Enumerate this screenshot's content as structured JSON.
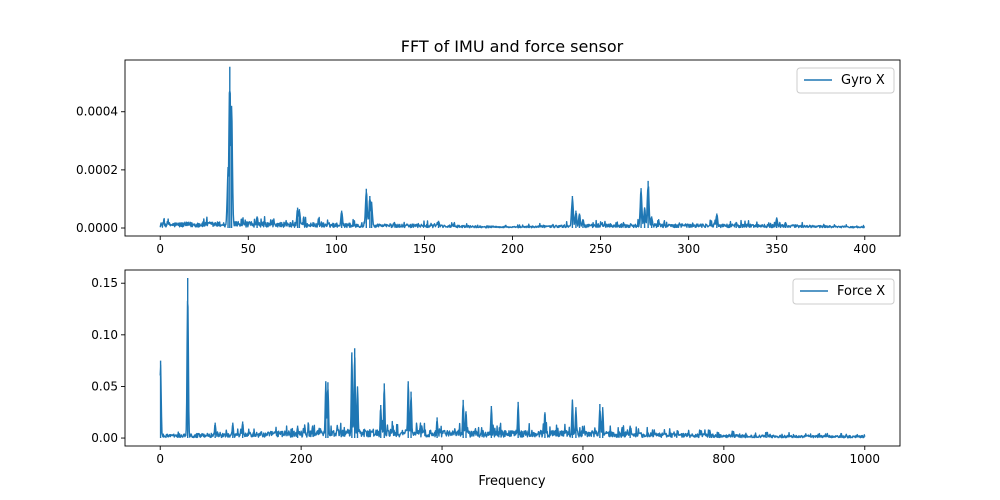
{
  "figure": {
    "title": "FFT of IMU and force sensor"
  },
  "chart_data": [
    {
      "type": "line",
      "title": "FFT of IMU and force sensor",
      "xlabel": "",
      "ylabel": "",
      "xlim": [
        -20,
        420
      ],
      "ylim": [
        -2.75e-05,
        0.000578
      ],
      "x_ticks": [
        0,
        50,
        100,
        150,
        200,
        250,
        300,
        350,
        400
      ],
      "x_tick_labels": [
        "0",
        "50",
        "100",
        "150",
        "200",
        "250",
        "300",
        "350",
        "400"
      ],
      "y_ticks": [
        0,
        0.0002,
        0.0004
      ],
      "y_tick_labels": [
        "0.0000",
        "0.0002",
        "0.0004"
      ],
      "grid": false,
      "legend_position": "top-right",
      "color": "#1f77b4",
      "noise_floor": [
        [
          0,
          1.5e-05
        ],
        [
          40,
          1.8e-05
        ],
        [
          100,
          1.4e-05
        ],
        [
          150,
          1e-05
        ],
        [
          200,
          4e-06
        ],
        [
          250,
          1.2e-05
        ],
        [
          300,
          1.2e-05
        ],
        [
          350,
          1e-05
        ],
        [
          400,
          4e-06
        ]
      ],
      "peaks": [
        [
          38.5,
          0.00021
        ],
        [
          39.5,
          0.000555
        ],
        [
          40.5,
          0.00042
        ],
        [
          55,
          4e-05
        ],
        [
          78,
          7e-05
        ],
        [
          79,
          6.5e-05
        ],
        [
          103,
          6e-05
        ],
        [
          117,
          0.000135
        ],
        [
          119,
          0.00011
        ],
        [
          120,
          9e-05
        ],
        [
          158,
          2.5e-05
        ],
        [
          234,
          0.00011
        ],
        [
          236,
          6e-05
        ],
        [
          238,
          5e-05
        ],
        [
          240,
          3e-05
        ],
        [
          273,
          0.000137
        ],
        [
          275,
          7e-05
        ],
        [
          277,
          0.000162
        ],
        [
          279,
          4e-05
        ],
        [
          316,
          5e-05
        ],
        [
          327,
          2e-05
        ],
        [
          350,
          3.5e-05
        ],
        [
          355,
          2e-05
        ]
      ],
      "series": [
        {
          "name": "Gyro X"
        }
      ]
    },
    {
      "type": "line",
      "title": "",
      "xlabel": "Frequency",
      "ylabel": "",
      "xlim": [
        -50,
        1050
      ],
      "ylim": [
        -0.0077,
        0.1628
      ],
      "x_ticks": [
        0,
        200,
        400,
        600,
        800,
        1000
      ],
      "x_tick_labels": [
        "0",
        "200",
        "400",
        "600",
        "800",
        "1000"
      ],
      "y_ticks": [
        0,
        0.05,
        0.1,
        0.15
      ],
      "y_tick_labels": [
        "0.00",
        "0.05",
        "0.10",
        "0.15"
      ],
      "grid": false,
      "legend_position": "top-right",
      "color": "#1f77b4",
      "noise_floor": [
        [
          0,
          0.003
        ],
        [
          100,
          0.004
        ],
        [
          200,
          0.006
        ],
        [
          300,
          0.007
        ],
        [
          400,
          0.006
        ],
        [
          500,
          0.006
        ],
        [
          600,
          0.006
        ],
        [
          700,
          0.004
        ],
        [
          800,
          0.003
        ],
        [
          900,
          0.002
        ],
        [
          1000,
          0.002
        ]
      ],
      "peaks": [
        [
          0.5,
          0.075
        ],
        [
          39,
          0.155
        ],
        [
          78,
          0.015
        ],
        [
          103,
          0.015
        ],
        [
          117,
          0.016
        ],
        [
          195,
          0.012
        ],
        [
          235,
          0.055
        ],
        [
          238,
          0.054
        ],
        [
          272,
          0.083
        ],
        [
          276,
          0.087
        ],
        [
          280,
          0.05
        ],
        [
          313,
          0.032
        ],
        [
          318,
          0.053
        ],
        [
          352,
          0.055
        ],
        [
          356,
          0.045
        ],
        [
          393,
          0.02
        ],
        [
          430,
          0.037
        ],
        [
          434,
          0.026
        ],
        [
          470,
          0.031
        ],
        [
          508,
          0.035
        ],
        [
          546,
          0.025
        ],
        [
          585,
          0.037
        ],
        [
          590,
          0.03
        ],
        [
          624,
          0.033
        ],
        [
          628,
          0.03
        ],
        [
          667,
          0.012
        ],
        [
          780,
          0.008
        ],
        [
          860,
          0.005
        ]
      ],
      "series": [
        {
          "name": "Force X"
        }
      ]
    }
  ]
}
